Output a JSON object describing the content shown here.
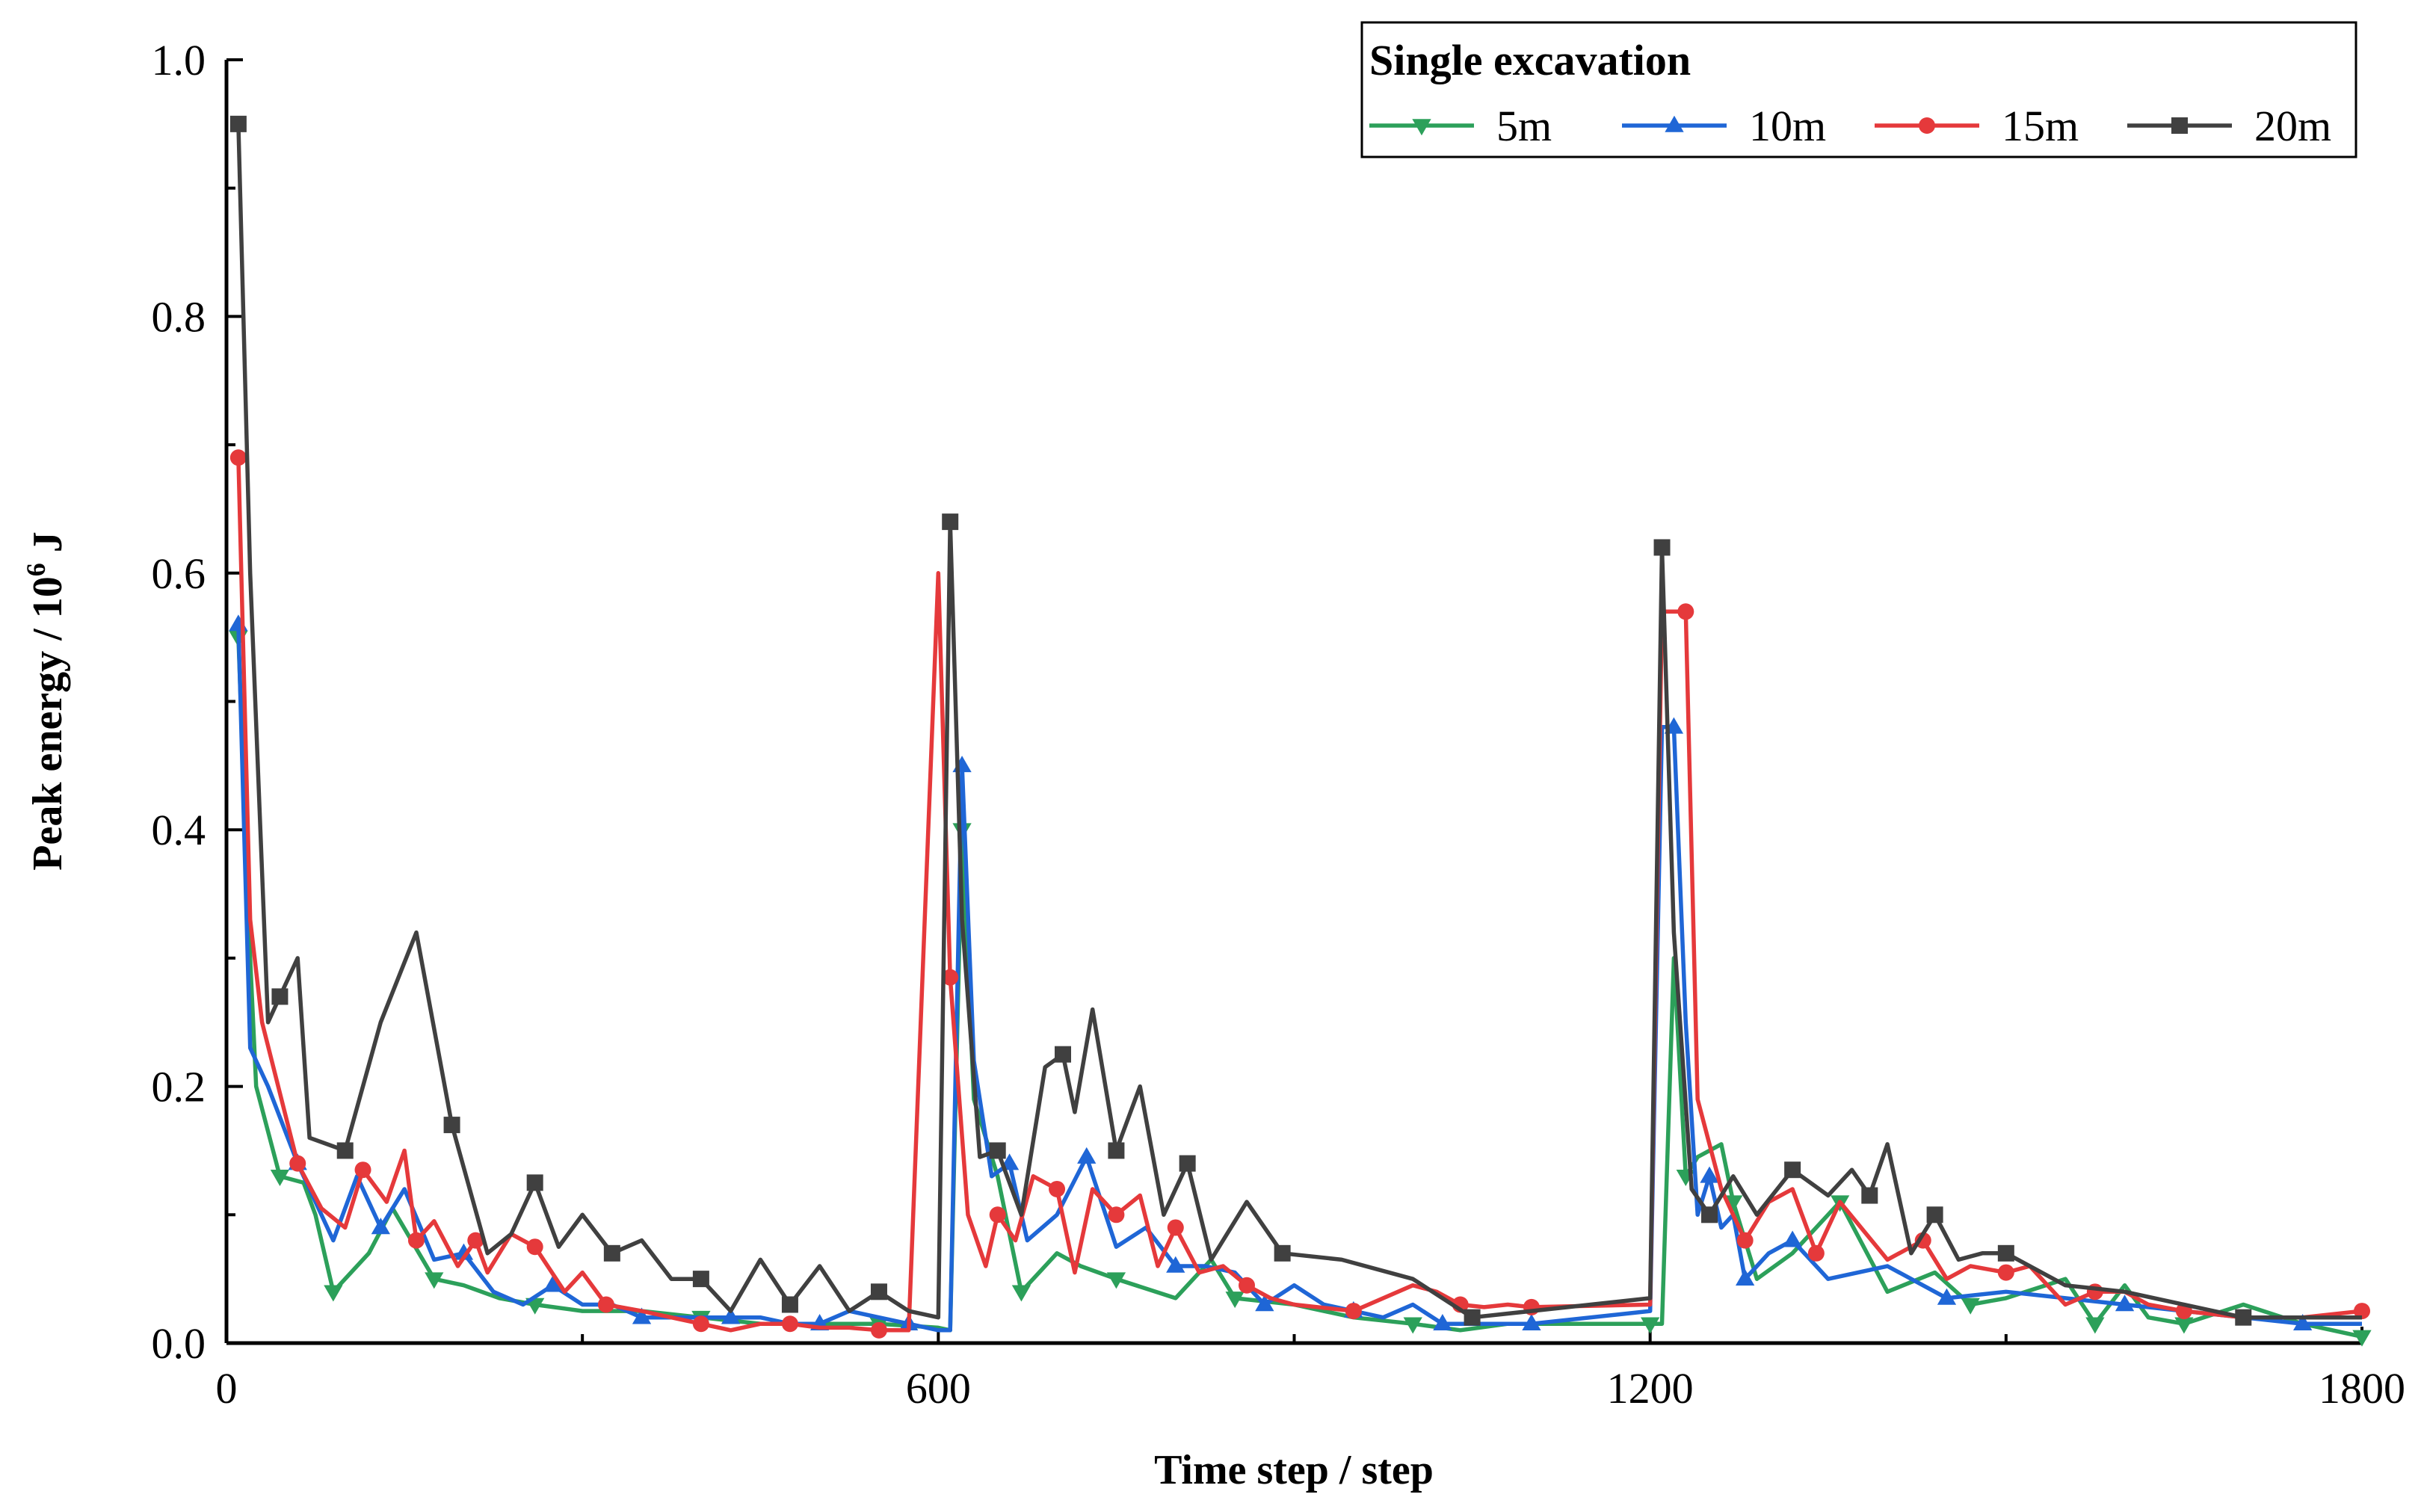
{
  "chart_data": {
    "type": "line",
    "title": "",
    "xlabel": "Time step / step",
    "ylabel": "Peak energy / 10",
    "ylabel_superscript": "6",
    "ylabel_unit": "J",
    "xlim": [
      0,
      1800
    ],
    "ylim": [
      0,
      1.0
    ],
    "xticks": [
      0,
      600,
      1200,
      1800
    ],
    "xtick_labels": [
      "0",
      "600",
      "1200",
      "1800"
    ],
    "yticks": [
      0,
      0.2,
      0.4,
      0.6,
      0.8,
      1.0
    ],
    "ytick_labels": [
      "0.0",
      "0.2",
      "0.4",
      "0.6",
      "0.8",
      "1.0"
    ],
    "legend": {
      "title": "Single excavation",
      "position": "top-right"
    },
    "grid": false,
    "series": [
      {
        "name": "5m",
        "color": "#2ca05a",
        "marker": "triangle-down",
        "x": [
          10,
          20,
          25,
          45,
          65,
          75,
          90,
          120,
          140,
          175,
          200,
          230,
          260,
          300,
          350,
          400,
          450,
          500,
          550,
          600,
          610,
          620,
          630,
          650,
          670,
          700,
          720,
          750,
          800,
          830,
          850,
          900,
          950,
          1000,
          1040,
          1080,
          1200,
          1210,
          1220,
          1230,
          1240,
          1260,
          1270,
          1290,
          1320,
          1360,
          1400,
          1440,
          1470,
          1500,
          1550,
          1575,
          1600,
          1620,
          1650,
          1700,
          1750,
          1800
        ],
        "y": [
          0.55,
          0.3,
          0.2,
          0.13,
          0.125,
          0.1,
          0.04,
          0.07,
          0.105,
          0.05,
          0.045,
          0.035,
          0.03,
          0.025,
          0.025,
          0.02,
          0.015,
          0.015,
          0.015,
          0.012,
          0.01,
          0.4,
          0.19,
          0.13,
          0.04,
          0.07,
          0.06,
          0.05,
          0.035,
          0.065,
          0.035,
          0.03,
          0.02,
          0.015,
          0.01,
          0.015,
          0.015,
          0.015,
          0.3,
          0.13,
          0.145,
          0.155,
          0.11,
          0.05,
          0.07,
          0.11,
          0.04,
          0.055,
          0.03,
          0.035,
          0.05,
          0.015,
          0.045,
          0.02,
          0.015,
          0.03,
          0.015,
          0.005
        ]
      },
      {
        "name": "10m",
        "color": "#1f66d6",
        "marker": "triangle-up",
        "x": [
          10,
          20,
          35,
          60,
          90,
          110,
          130,
          150,
          175,
          200,
          225,
          250,
          275,
          300,
          325,
          350,
          375,
          400,
          425,
          450,
          475,
          500,
          525,
          550,
          575,
          600,
          610,
          620,
          630,
          645,
          660,
          675,
          700,
          725,
          750,
          775,
          800,
          825,
          850,
          875,
          900,
          925,
          950,
          975,
          1000,
          1025,
          1050,
          1075,
          1100,
          1200,
          1210,
          1220,
          1230,
          1240,
          1250,
          1260,
          1270,
          1280,
          1290,
          1300,
          1320,
          1350,
          1400,
          1450,
          1500,
          1550,
          1600,
          1650,
          1700,
          1750,
          1800
        ],
        "y": [
          0.56,
          0.23,
          0.2,
          0.14,
          0.08,
          0.13,
          0.09,
          0.12,
          0.065,
          0.07,
          0.04,
          0.03,
          0.045,
          0.03,
          0.03,
          0.02,
          0.02,
          0.02,
          0.02,
          0.02,
          0.015,
          0.015,
          0.025,
          0.02,
          0.015,
          0.01,
          0.01,
          0.45,
          0.22,
          0.13,
          0.14,
          0.08,
          0.1,
          0.145,
          0.075,
          0.09,
          0.06,
          0.06,
          0.055,
          0.03,
          0.045,
          0.03,
          0.025,
          0.02,
          0.03,
          0.015,
          0.015,
          0.015,
          0.015,
          0.025,
          0.48,
          0.48,
          0.25,
          0.1,
          0.13,
          0.09,
          0.1,
          0.05,
          0.06,
          0.07,
          0.08,
          0.05,
          0.06,
          0.035,
          0.04,
          0.035,
          0.03,
          0.025,
          0.02,
          0.015,
          0.015
        ]
      },
      {
        "name": "15m",
        "color": "#e5393b",
        "marker": "circle",
        "x": [
          10,
          20,
          30,
          60,
          80,
          100,
          115,
          135,
          150,
          160,
          175,
          195,
          210,
          220,
          240,
          260,
          285,
          300,
          320,
          350,
          375,
          400,
          425,
          450,
          475,
          500,
          525,
          550,
          575,
          600,
          610,
          625,
          640,
          650,
          665,
          680,
          700,
          715,
          730,
          750,
          770,
          785,
          800,
          820,
          840,
          860,
          880,
          900,
          950,
          1000,
          1020,
          1040,
          1060,
          1080,
          1100,
          1200,
          1210,
          1230,
          1240,
          1260,
          1280,
          1300,
          1320,
          1340,
          1360,
          1400,
          1430,
          1450,
          1470,
          1500,
          1520,
          1550,
          1575,
          1600,
          1620,
          1650,
          1700,
          1750,
          1800
        ],
        "y": [
          0.69,
          0.33,
          0.25,
          0.14,
          0.105,
          0.09,
          0.135,
          0.11,
          0.15,
          0.08,
          0.095,
          0.06,
          0.08,
          0.055,
          0.085,
          0.075,
          0.04,
          0.055,
          0.03,
          0.025,
          0.02,
          0.015,
          0.01,
          0.015,
          0.015,
          0.012,
          0.012,
          0.01,
          0.01,
          0.6,
          0.285,
          0.1,
          0.06,
          0.1,
          0.08,
          0.13,
          0.12,
          0.055,
          0.12,
          0.1,
          0.115,
          0.06,
          0.09,
          0.055,
          0.06,
          0.045,
          0.035,
          0.03,
          0.025,
          0.045,
          0.04,
          0.03,
          0.028,
          0.03,
          0.028,
          0.03,
          0.57,
          0.57,
          0.19,
          0.12,
          0.08,
          0.11,
          0.12,
          0.07,
          0.11,
          0.065,
          0.08,
          0.05,
          0.06,
          0.055,
          0.06,
          0.03,
          0.04,
          0.04,
          0.03,
          0.025,
          0.02,
          0.02,
          0.025
        ]
      },
      {
        "name": "20m",
        "color": "#404040",
        "marker": "square",
        "x": [
          10,
          20,
          35,
          45,
          60,
          70,
          100,
          130,
          160,
          190,
          220,
          240,
          260,
          280,
          300,
          325,
          350,
          375,
          400,
          425,
          450,
          475,
          500,
          525,
          550,
          575,
          600,
          610,
          620,
          635,
          650,
          670,
          690,
          705,
          715,
          730,
          750,
          770,
          790,
          810,
          830,
          860,
          890,
          940,
          1000,
          1050,
          1100,
          1200,
          1210,
          1220,
          1235,
          1250,
          1270,
          1290,
          1320,
          1350,
          1370,
          1385,
          1400,
          1420,
          1440,
          1460,
          1480,
          1500,
          1550,
          1600,
          1700,
          1800
        ],
        "y": [
          0.95,
          0.6,
          0.25,
          0.27,
          0.3,
          0.16,
          0.15,
          0.25,
          0.32,
          0.17,
          0.07,
          0.085,
          0.125,
          0.075,
          0.1,
          0.07,
          0.08,
          0.05,
          0.05,
          0.025,
          0.065,
          0.03,
          0.06,
          0.025,
          0.04,
          0.025,
          0.02,
          0.64,
          0.33,
          0.145,
          0.15,
          0.1,
          0.215,
          0.225,
          0.18,
          0.26,
          0.15,
          0.2,
          0.1,
          0.14,
          0.065,
          0.11,
          0.07,
          0.065,
          0.05,
          0.02,
          0.025,
          0.035,
          0.62,
          0.32,
          0.12,
          0.1,
          0.13,
          0.1,
          0.135,
          0.115,
          0.135,
          0.115,
          0.155,
          0.07,
          0.1,
          0.065,
          0.07,
          0.07,
          0.045,
          0.04,
          0.02,
          0.02
        ]
      }
    ]
  }
}
